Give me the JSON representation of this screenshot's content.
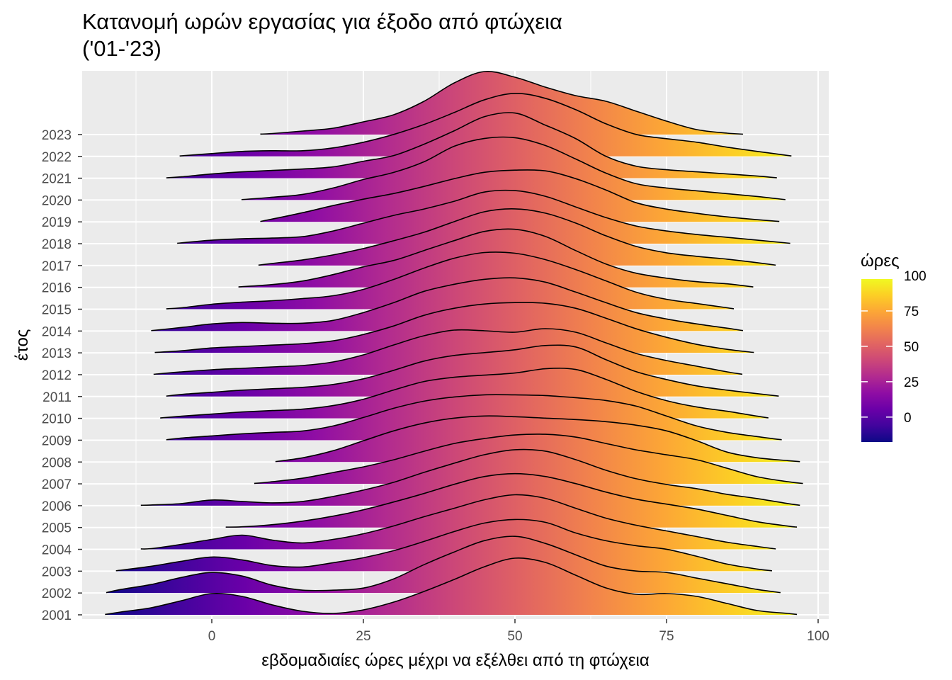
{
  "chart_data": {
    "type": "ridgeline",
    "title_line1": "Κατανομή ωρών εργασίας για έξοδο από φτώχεια",
    "title_line2": "('01-'23)",
    "xlabel": "εβδομαδιαίες ώρες μέχρι να εξέλθει από τη φτώχεια",
    "ylabel": "έτος",
    "xlim": [
      -21.4,
      101.2
    ],
    "x_ticks": [
      0,
      25,
      50,
      75,
      100
    ],
    "x_tick_labels": [
      "0",
      "25",
      "50",
      "75",
      "100"
    ],
    "grid": true,
    "legend": {
      "title": "ώρες",
      "position": "right",
      "ticks": [
        100,
        75,
        50,
        25,
        0
      ],
      "tick_labels": [
        "100",
        "75",
        "50",
        "25",
        "0"
      ],
      "range": [
        -17.6,
        97.5
      ]
    },
    "colormap": [
      "#0d0887",
      "#41049d",
      "#6a00a8",
      "#8f0da4",
      "#b12a90",
      "#cc4778",
      "#e16462",
      "#f2844b",
      "#fca636",
      "#fcce25",
      "#f0f921"
    ],
    "density_grid_x": [
      -20,
      -15,
      -10,
      -5,
      0,
      5,
      10,
      15,
      20,
      25,
      30,
      35,
      40,
      45,
      50,
      55,
      60,
      65,
      70,
      75,
      80,
      85,
      90,
      95,
      100
    ],
    "density_units": "relative density x100",
    "series": [
      {
        "year": "2001",
        "min": -17.6,
        "max": 96.5,
        "density": [
          0,
          4,
          10,
          20,
          30,
          26,
          14,
          5,
          2,
          7,
          18,
          33,
          50,
          68,
          80,
          74,
          56,
          38,
          29,
          30,
          26,
          16,
          6,
          2,
          0
        ]
      },
      {
        "year": "2002",
        "min": -17.4,
        "max": 93.8,
        "density": [
          0,
          5,
          12,
          22,
          29,
          24,
          11,
          4,
          4,
          7,
          20,
          40,
          58,
          74,
          80,
          70,
          54,
          38,
          31,
          29,
          21,
          13,
          5,
          0,
          0
        ]
      },
      {
        "year": "2003",
        "min": -15.8,
        "max": 92.4,
        "density": [
          0,
          2,
          7,
          14,
          20,
          16,
          8,
          6,
          12,
          19,
          29,
          42,
          56,
          68,
          73,
          69,
          54,
          43,
          36,
          31,
          21,
          10,
          3,
          0,
          0
        ]
      },
      {
        "year": "2004",
        "min": -11.7,
        "max": 93.0,
        "density": [
          0,
          0,
          1,
          7,
          14,
          20,
          13,
          9,
          14,
          22,
          33,
          46,
          58,
          70,
          77,
          72,
          58,
          44,
          34,
          26,
          18,
          10,
          4,
          0,
          0
        ]
      },
      {
        "year": "2005",
        "min": 2.3,
        "max": 96.5,
        "density": [
          0,
          0,
          0,
          0,
          0,
          1,
          4,
          9,
          16,
          25,
          36,
          48,
          61,
          72,
          76,
          72,
          62,
          50,
          40,
          33,
          26,
          17,
          8,
          2,
          0
        ]
      },
      {
        "year": "2006",
        "min": -11.7,
        "max": 97.0,
        "density": [
          0,
          0,
          1,
          3,
          8,
          6,
          4,
          6,
          13,
          22,
          33,
          47,
          60,
          72,
          79,
          77,
          65,
          50,
          38,
          30,
          24,
          16,
          10,
          3,
          0
        ]
      },
      {
        "year": "2007",
        "min": 7.0,
        "max": 97.5,
        "density": [
          0,
          0,
          0,
          0,
          0,
          0,
          3,
          8,
          16,
          24,
          34,
          46,
          57,
          64,
          69,
          70,
          66,
          57,
          48,
          41,
          34,
          22,
          10,
          3,
          0
        ]
      },
      {
        "year": "2008",
        "min": 10.5,
        "max": 97.0,
        "density": [
          0,
          0,
          0,
          0,
          0,
          0,
          1,
          6,
          16,
          30,
          44,
          55,
          62,
          65,
          64,
          62,
          60,
          57,
          52,
          44,
          30,
          14,
          6,
          2,
          0
        ]
      },
      {
        "year": "2009",
        "min": -7.5,
        "max": 94.0,
        "density": [
          0,
          0,
          0,
          3,
          6,
          9,
          11,
          13,
          20,
          32,
          45,
          55,
          61,
          64,
          64,
          63,
          60,
          56,
          48,
          34,
          20,
          11,
          5,
          0,
          0
        ]
      },
      {
        "year": "2010",
        "min": -8.5,
        "max": 91.8,
        "density": [
          0,
          0,
          0,
          3,
          6,
          9,
          11,
          13,
          18,
          27,
          40,
          52,
          58,
          61,
          64,
          70,
          69,
          55,
          38,
          25,
          16,
          10,
          3,
          0,
          0
        ]
      },
      {
        "year": "2011",
        "min": -7.5,
        "max": 93.5,
        "density": [
          0,
          0,
          0,
          3,
          6,
          9,
          11,
          13,
          17,
          25,
          37,
          50,
          58,
          62,
          66,
          72,
          70,
          52,
          35,
          24,
          15,
          9,
          4,
          0,
          0
        ]
      },
      {
        "year": "2012",
        "min": -9.6,
        "max": 87.5,
        "density": [
          0,
          0,
          0.5,
          4,
          7,
          9,
          11,
          13,
          18,
          28,
          42,
          55,
          63,
          62,
          60,
          65,
          60,
          45,
          30,
          20,
          12,
          4,
          0,
          0,
          0
        ]
      },
      {
        "year": "2013",
        "min": -9.4,
        "max": 89.4,
        "density": [
          0,
          0,
          0.5,
          3,
          7,
          9,
          11,
          13,
          17,
          26,
          38,
          53,
          63,
          69,
          71,
          70,
          63,
          49,
          34,
          22,
          12,
          5,
          0,
          0,
          0
        ]
      },
      {
        "year": "2014",
        "min": -10.0,
        "max": 87.6,
        "density": [
          0,
          0,
          0.5,
          5,
          10,
          12,
          11,
          11,
          15,
          26,
          40,
          56,
          66,
          73,
          75,
          69,
          55,
          40,
          26,
          17,
          10,
          4,
          0,
          0,
          0
        ]
      },
      {
        "year": "2015",
        "min": -7.5,
        "max": 86.1,
        "density": [
          0,
          0,
          0,
          2,
          7,
          10,
          12,
          15,
          19,
          28,
          42,
          58,
          72,
          80,
          79,
          70,
          56,
          40,
          24,
          14,
          8,
          2,
          0,
          0,
          0
        ]
      },
      {
        "year": "2016",
        "min": 4.4,
        "max": 89.3,
        "density": [
          0,
          0,
          0,
          0,
          0,
          1,
          4,
          9,
          18,
          29,
          38,
          52,
          66,
          79,
          82,
          72,
          52,
          33,
          20,
          13,
          8,
          5,
          1,
          0,
          0
        ]
      },
      {
        "year": "2017",
        "min": 7.7,
        "max": 93.0,
        "density": [
          0,
          0,
          0,
          0,
          0,
          0,
          3,
          8,
          15,
          24,
          35,
          47,
          62,
          76,
          80,
          74,
          60,
          42,
          27,
          18,
          13,
          9,
          4,
          0,
          0
        ]
      },
      {
        "year": "2018",
        "min": -5.7,
        "max": 95.4,
        "density": [
          0,
          0,
          0,
          1,
          5,
          7,
          8,
          10,
          18,
          29,
          40,
          49,
          60,
          73,
          75,
          67,
          52,
          37,
          25,
          18,
          13,
          9,
          5,
          1,
          0
        ]
      },
      {
        "year": "2019",
        "min": 8.0,
        "max": 93.6,
        "density": [
          0,
          0,
          0,
          0,
          0,
          0,
          4,
          13,
          23,
          32,
          40,
          50,
          61,
          70,
          73,
          72,
          61,
          45,
          27,
          18,
          12,
          7,
          3,
          0,
          0
        ]
      },
      {
        "year": "2020",
        "min": 4.9,
        "max": 94.6,
        "density": [
          0,
          0,
          0,
          0,
          0,
          1,
          4,
          8,
          17,
          29,
          39,
          54,
          76,
          87,
          88,
          77,
          58,
          38,
          23,
          17,
          13,
          9,
          5,
          0,
          0
        ]
      },
      {
        "year": "2021",
        "min": -7.5,
        "max": 93.2,
        "density": [
          0,
          0,
          0,
          2,
          6,
          9,
          11,
          13,
          16,
          24,
          32,
          48,
          67,
          87,
          92,
          75,
          56,
          31,
          17,
          12,
          9,
          6,
          3,
          0,
          0
        ]
      },
      {
        "year": "2022",
        "min": -5.3,
        "max": 95.6,
        "density": [
          0,
          0,
          0,
          1,
          4,
          7,
          8,
          8,
          12,
          20,
          31,
          45,
          62,
          80,
          89,
          82,
          66,
          46,
          31,
          25,
          20,
          13,
          7,
          2,
          0
        ]
      },
      {
        "year": "2023",
        "min": 8.0,
        "max": 87.6,
        "density": [
          0,
          0,
          0,
          0,
          0,
          0,
          1.5,
          5,
          9,
          18,
          28,
          47,
          73,
          89,
          81,
          67,
          55,
          47,
          33,
          19,
          7,
          2,
          0,
          0,
          0
        ]
      }
    ]
  }
}
